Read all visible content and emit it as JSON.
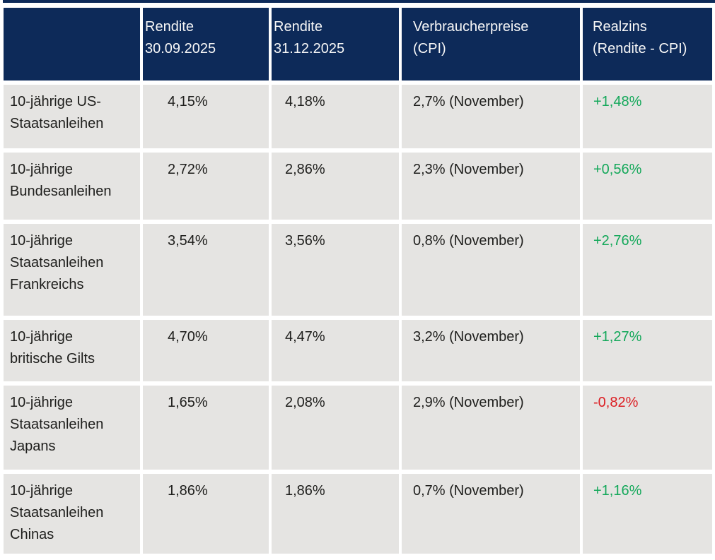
{
  "colors": {
    "header_bg": "#0d2a59",
    "row_bg": "#e5e4e2",
    "header_text": "#f7f7f7",
    "body_text": "#1e1e1c",
    "positive": "#14a85a",
    "negative": "#dc1e23"
  },
  "table": {
    "columns": [
      "",
      "Rendite 30.09.2025",
      "Rendite 31.12.2025",
      "Verbraucherpreise (CPI)",
      "Realzins (Rendite - CPI)"
    ],
    "rows": [
      {
        "label": "10-jährige US-Staatsanleihen",
        "rendite_30_09": "4,15%",
        "rendite_31_12": "4,18%",
        "cpi": "2,7% (November)",
        "realzins": "+1,48%"
      },
      {
        "label": "10-jährige Bundesanleihen",
        "rendite_30_09": "2,72%",
        "rendite_31_12": "2,86%",
        "cpi": "2,3% (November)",
        "realzins": "+0,56%"
      },
      {
        "label": "10-jährige Staatsanleihen Frankreichs",
        "rendite_30_09": "3,54%",
        "rendite_31_12": "3,56%",
        "cpi": "0,8% (November)",
        "realzins": "+2,76%"
      },
      {
        "label": "10-jährige britische Gilts",
        "rendite_30_09": "4,70%",
        "rendite_31_12": "4,47%",
        "cpi": "3,2% (November)",
        "realzins": "+1,27%"
      },
      {
        "label": "10-jährige Staatsanleihen Japans",
        "rendite_30_09": "1,65%",
        "rendite_31_12": "2,08%",
        "cpi": "2,9% (November)",
        "realzins": "-0,82%"
      },
      {
        "label": "10-jährige Staatsanleihen Chinas",
        "rendite_30_09": "1,86%",
        "rendite_31_12": "1,86%",
        "cpi": "0,7% (November)",
        "realzins": "+1,16%"
      }
    ]
  }
}
